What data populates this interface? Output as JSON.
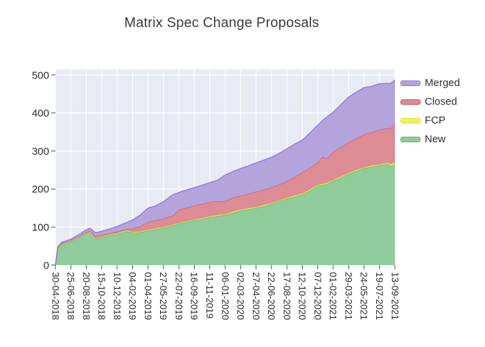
{
  "header": {
    "title": "Matrix Spec Change Proposals"
  },
  "colors": {
    "plot_bg": "#e8eaf4",
    "grid": "#ffffff",
    "tick_mark": "#444444",
    "axis_text": "#2b2b2b",
    "title_text": "#3b3b3b"
  },
  "legend": {
    "items": [
      {
        "label": "Merged",
        "fill": "#b3a4db",
        "line": "#9673d9"
      },
      {
        "label": "Closed",
        "fill": "#dd8b95",
        "line": "#cc5a6e"
      },
      {
        "label": "FCP",
        "fill": "#f1ef63",
        "line": "#e0df30"
      },
      {
        "label": "New",
        "fill": "#90cb9c",
        "line": "#5bb271"
      }
    ]
  },
  "chart_data": {
    "type": "area",
    "stacked": true,
    "title": "Matrix Spec Change Proposals",
    "xlabel": "",
    "ylabel": "",
    "ylim": [
      0,
      500
    ],
    "y_ticks": [
      0,
      100,
      200,
      300,
      400,
      500
    ],
    "grid": true,
    "legend_position": "right-top-outside",
    "x_tick_labels": [
      "30-04-2018",
      "25-06-2018",
      "20-08-2018",
      "15-10-2018",
      "10-12-2018",
      "04-02-2019",
      "01-04-2019",
      "27-05-2019",
      "22-07-2019",
      "16-09-2019",
      "11-11-2019",
      "06-01-2020",
      "02-03-2020",
      "27-04-2020",
      "22-06-2020",
      "17-08-2020",
      "12-10-2020",
      "07-12-2020",
      "01-02-2021",
      "29-03-2021",
      "24-05-2021",
      "19-07-2021",
      "13-09-2021"
    ],
    "series_bottom_to_top": [
      {
        "name": "New",
        "fill": "#90cb9c",
        "line": "#5bb271"
      },
      {
        "name": "FCP",
        "fill": "#f1ef63",
        "line": "#e0df30"
      },
      {
        "name": "Closed",
        "fill": "#dd8b95",
        "line": "#cc5a6e"
      },
      {
        "name": "Merged",
        "fill": "#b3a4db",
        "line": "#9673d9"
      }
    ],
    "columns": [
      "pos_in_tick_units",
      "New",
      "FCP",
      "Closed",
      "Merged"
    ],
    "rows": [
      [
        0,
        1,
        0,
        0,
        0
      ],
      [
        0.15,
        42,
        1,
        2,
        2
      ],
      [
        0.4,
        54,
        1,
        2,
        3
      ],
      [
        1,
        62,
        1,
        2,
        3
      ],
      [
        1.5,
        72,
        1,
        2,
        5
      ],
      [
        2,
        82,
        1,
        3,
        7
      ],
      [
        2.25,
        87,
        1,
        3,
        6
      ],
      [
        2.6,
        68,
        1,
        7,
        9
      ],
      [
        3,
        74,
        1,
        5,
        9
      ],
      [
        3.5,
        78,
        2,
        4,
        11
      ],
      [
        4,
        82,
        2,
        4,
        14
      ],
      [
        4.6,
        89,
        2,
        4,
        17
      ],
      [
        5,
        85,
        2,
        9,
        23
      ],
      [
        5.5,
        86,
        2,
        14,
        30
      ],
      [
        6,
        91,
        2,
        20,
        37
      ],
      [
        6.5,
        94,
        2,
        22,
        38
      ],
      [
        7,
        98,
        2,
        22,
        45
      ],
      [
        7.6,
        104,
        2,
        24,
        55
      ],
      [
        8,
        109,
        2,
        35,
        45
      ],
      [
        8.5,
        113,
        2,
        36,
        47
      ],
      [
        9,
        118,
        2,
        37,
        47
      ],
      [
        9.5,
        121,
        2,
        38,
        49
      ],
      [
        10,
        126,
        2,
        38,
        51
      ],
      [
        10.5,
        129,
        3,
        36,
        55
      ],
      [
        11,
        132,
        2,
        34,
        69
      ],
      [
        11.5,
        138,
        3,
        37,
        68
      ],
      [
        12,
        144,
        2,
        36,
        72
      ],
      [
        12.5,
        147,
        3,
        38,
        73
      ],
      [
        13,
        150,
        2,
        41,
        76
      ],
      [
        13.5,
        155,
        3,
        40,
        78
      ],
      [
        14,
        161,
        2,
        41,
        80
      ],
      [
        14.5,
        168,
        2,
        42,
        82
      ],
      [
        15,
        175,
        2,
        43,
        86
      ],
      [
        15.5,
        180,
        3,
        49,
        86
      ],
      [
        16,
        186,
        2,
        56,
        85
      ],
      [
        16.5,
        196,
        3,
        57,
        92
      ],
      [
        17,
        209,
        2,
        59,
        98
      ],
      [
        17.3,
        210,
        3,
        72,
        95
      ],
      [
        17.6,
        214,
        3,
        63,
        110
      ],
      [
        18,
        222,
        2,
        74,
        104
      ],
      [
        18.5,
        230,
        3,
        77,
        112
      ],
      [
        19,
        240,
        2,
        80,
        120
      ],
      [
        19.5,
        247,
        3,
        83,
        122
      ],
      [
        20,
        255,
        2,
        87,
        123
      ],
      [
        20.5,
        259,
        3,
        87,
        121
      ],
      [
        21,
        262,
        2,
        92,
        121
      ],
      [
        21.5,
        266,
        3,
        91,
        118
      ],
      [
        21.75,
        261,
        4,
        95,
        118
      ],
      [
        22,
        265,
        4,
        103,
        115
      ]
    ]
  }
}
